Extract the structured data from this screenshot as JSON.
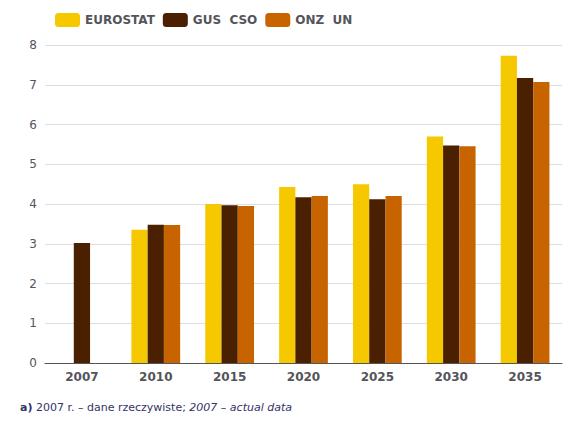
{
  "chart_data": {
    "type": "bar",
    "categories": [
      "2007",
      "2010",
      "2015",
      "2020",
      "2025",
      "2030",
      "2035"
    ],
    "series": [
      {
        "name": "EUROSTAT",
        "color": "#F5C800",
        "values": [
          null,
          3.35,
          4.0,
          4.43,
          4.5,
          5.7,
          7.73
        ]
      },
      {
        "name": "GUS  CSO",
        "color": "#4A2000",
        "values": [
          3.02,
          3.48,
          3.97,
          4.17,
          4.12,
          5.47,
          7.17
        ]
      },
      {
        "name": "ONZ  UN",
        "color": "#C86400",
        "values": [
          null,
          3.47,
          3.95,
          4.2,
          4.2,
          5.45,
          7.07
        ]
      }
    ],
    "ylim": [
      0,
      8
    ],
    "yticks": [
      0,
      1,
      2,
      3,
      4,
      5,
      6,
      7,
      8
    ],
    "grid": true,
    "legend": "upper left",
    "annotations": [
      "a)",
      "2007 r. – dane rzeczywiste;",
      "2007 – actual data"
    ]
  }
}
